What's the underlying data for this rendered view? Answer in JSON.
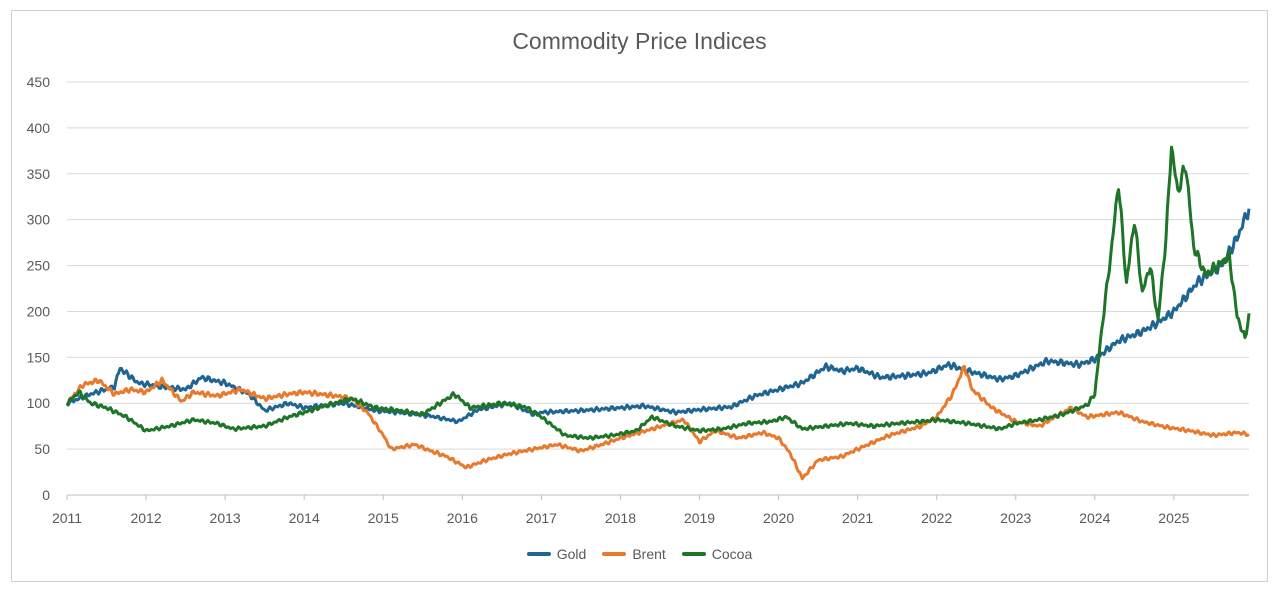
{
  "chart_data": {
    "type": "line",
    "title": "Commodity Price Indices",
    "xlabel": "",
    "ylabel": "",
    "ylim": [
      0,
      450
    ],
    "yticks": [
      "0",
      "50",
      "100",
      "150",
      "200",
      "250",
      "300",
      "350",
      "400",
      "450"
    ],
    "xlim": [
      2011,
      2025.95
    ],
    "xticks": [
      "2011",
      "2012",
      "2013",
      "2014",
      "2015",
      "2016",
      "2017",
      "2018",
      "2019",
      "2020",
      "2021",
      "2022",
      "2023",
      "2024",
      "2025"
    ],
    "grid": "horizontal",
    "legend": "bottom-center",
    "series": [
      {
        "name": "Gold",
        "color": "#1f6591",
        "x": [
          2011.0,
          2011.3,
          2011.6,
          2011.67,
          2011.9,
          2012.2,
          2012.5,
          2012.7,
          2013.0,
          2013.3,
          2013.5,
          2013.8,
          2014.0,
          2014.5,
          2014.9,
          2015.2,
          2015.6,
          2015.95,
          2016.2,
          2016.6,
          2016.9,
          2017.0,
          2017.5,
          2018.0,
          2018.3,
          2018.7,
          2019.0,
          2019.4,
          2019.7,
          2020.0,
          2020.3,
          2020.6,
          2020.8,
          2021.0,
          2021.3,
          2021.6,
          2021.9,
          2022.15,
          2022.4,
          2022.8,
          2023.0,
          2023.4,
          2023.8,
          2024.0,
          2024.3,
          2024.6,
          2024.8,
          2025.0,
          2025.3,
          2025.6,
          2025.8,
          2025.95
        ],
        "values": [
          100,
          110,
          118,
          138,
          122,
          118,
          115,
          128,
          122,
          110,
          92,
          100,
          95,
          100,
          92,
          90,
          86,
          80,
          93,
          100,
          88,
          90,
          92,
          95,
          97,
          90,
          93,
          96,
          108,
          115,
          122,
          140,
          135,
          138,
          128,
          130,
          133,
          142,
          135,
          126,
          130,
          146,
          142,
          148,
          168,
          178,
          188,
          200,
          232,
          250,
          280,
          312
        ]
      },
      {
        "name": "Brent",
        "color": "#e77a2d",
        "x": [
          2011.0,
          2011.2,
          2011.4,
          2011.6,
          2011.8,
          2012.0,
          2012.2,
          2012.45,
          2012.6,
          2012.9,
          2013.2,
          2013.5,
          2013.8,
          2014.0,
          2014.4,
          2014.6,
          2014.8,
          2015.0,
          2015.1,
          2015.4,
          2015.6,
          2015.8,
          2016.05,
          2016.3,
          2016.6,
          2016.9,
          2017.2,
          2017.5,
          2017.8,
          2018.0,
          2018.4,
          2018.8,
          2019.0,
          2019.2,
          2019.5,
          2019.8,
          2020.0,
          2020.15,
          2020.3,
          2020.5,
          2020.8,
          2021.0,
          2021.4,
          2021.8,
          2022.0,
          2022.2,
          2022.35,
          2022.45,
          2022.7,
          2022.9,
          2023.0,
          2023.3,
          2023.7,
          2023.9,
          2024.3,
          2024.6,
          2024.9,
          2025.2,
          2025.5,
          2025.8,
          2025.95
        ],
        "values": [
          100,
          120,
          125,
          110,
          115,
          112,
          125,
          102,
          112,
          108,
          115,
          105,
          110,
          112,
          108,
          105,
          90,
          65,
          50,
          55,
          48,
          42,
          30,
          38,
          45,
          50,
          55,
          48,
          56,
          62,
          72,
          82,
          58,
          70,
          62,
          68,
          62,
          45,
          18,
          38,
          42,
          50,
          65,
          75,
          85,
          110,
          140,
          115,
          95,
          85,
          80,
          75,
          95,
          85,
          90,
          80,
          74,
          70,
          65,
          68,
          66
        ]
      },
      {
        "name": "Cocoa",
        "color": "#1e7427",
        "x": [
          2011.0,
          2011.15,
          2011.3,
          2011.5,
          2011.75,
          2012.0,
          2012.3,
          2012.6,
          2012.9,
          2013.1,
          2013.5,
          2013.8,
          2014.0,
          2014.3,
          2014.6,
          2014.9,
          2015.2,
          2015.5,
          2015.9,
          2016.1,
          2016.5,
          2016.8,
          2017.0,
          2017.3,
          2017.6,
          2017.9,
          2018.2,
          2018.4,
          2018.7,
          2019.0,
          2019.3,
          2019.6,
          2019.9,
          2020.1,
          2020.3,
          2020.6,
          2020.9,
          2021.2,
          2021.5,
          2021.8,
          2022.0,
          2022.4,
          2022.8,
          2023.0,
          2023.3,
          2023.6,
          2023.9,
          2024.0,
          2024.1,
          2024.2,
          2024.3,
          2024.4,
          2024.5,
          2024.6,
          2024.7,
          2024.8,
          2024.9,
          2024.97,
          2025.05,
          2025.15,
          2025.25,
          2025.4,
          2025.55,
          2025.7,
          2025.8,
          2025.9,
          2025.95
        ],
        "values": [
          100,
          112,
          100,
          95,
          85,
          70,
          75,
          82,
          78,
          72,
          75,
          85,
          90,
          98,
          105,
          95,
          92,
          88,
          110,
          95,
          100,
          96,
          85,
          65,
          62,
          65,
          70,
          85,
          75,
          70,
          72,
          78,
          80,
          85,
          72,
          75,
          78,
          75,
          78,
          80,
          82,
          78,
          72,
          78,
          82,
          88,
          98,
          110,
          190,
          260,
          340,
          230,
          300,
          220,
          250,
          190,
          280,
          380,
          330,
          360,
          270,
          240,
          250,
          260,
          195,
          170,
          198
        ]
      }
    ]
  }
}
